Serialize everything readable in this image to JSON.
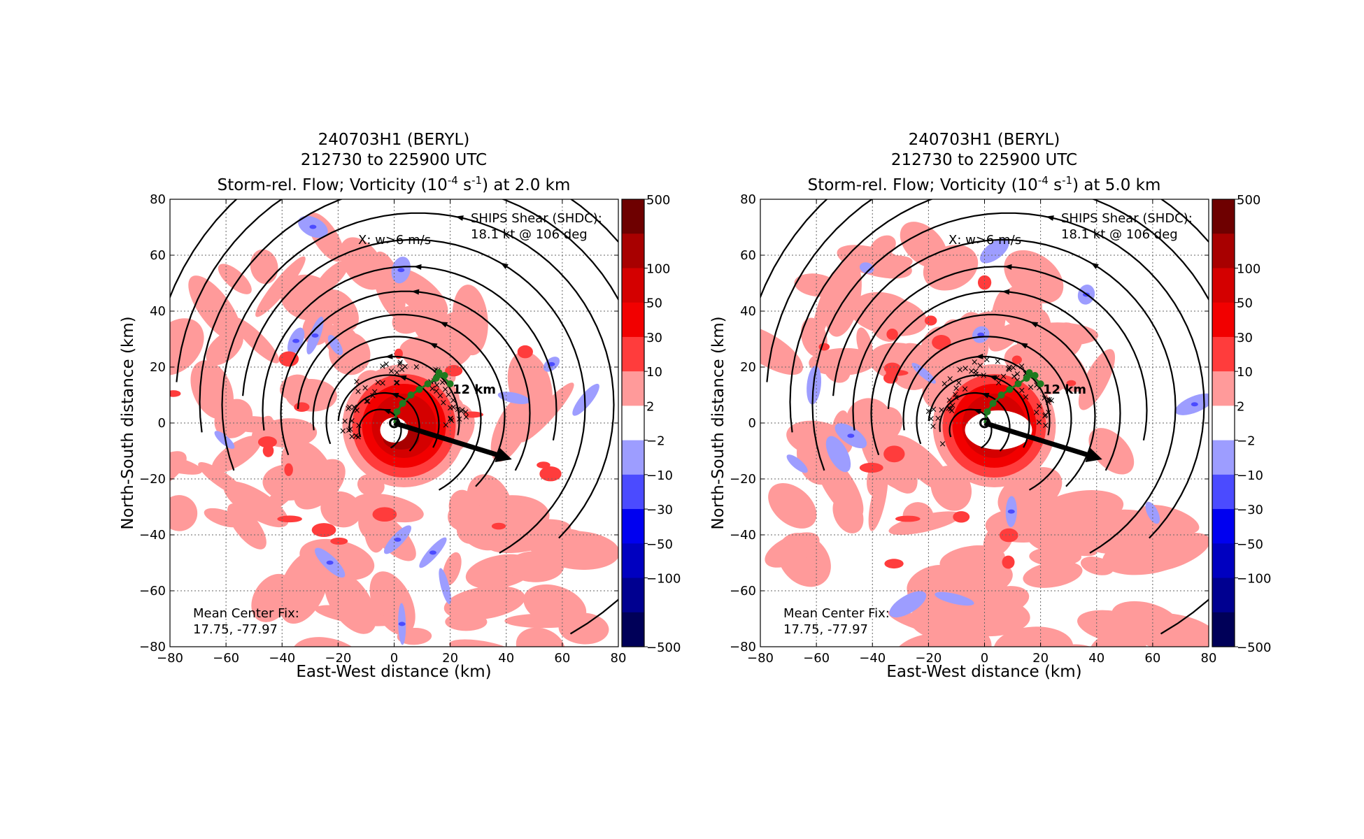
{
  "chart_data": [
    {
      "type": "heatmap",
      "title_lines": [
        "240703H1 (BERYL)",
        "212730 to 225900 UTC"
      ],
      "title_line3": {
        "pre": "Storm-rel. Flow; Vorticity (10",
        "exp1": "-4",
        "mid": " s",
        "exp2": "-1",
        "post": ") at 2.0 km"
      },
      "xlabel": "East-West distance (km)",
      "ylabel": "North-South distance (km)",
      "xlim": [
        -80,
        80
      ],
      "ylim": [
        -80,
        80
      ],
      "xticks": [
        "−80",
        "−60",
        "−40",
        "−20",
        "0",
        "20",
        "40",
        "60",
        "80"
      ],
      "yticks": [
        "−80",
        "−60",
        "−40",
        "−20",
        "0",
        "20",
        "40",
        "60",
        "80"
      ],
      "grid": true,
      "updraft_label": "X: w>6 m/s",
      "shear_lines": [
        "SHIPS Shear (SHDC):",
        "18.1 kt @ 106 deg"
      ],
      "center_lines": [
        "Mean Center Fix:",
        "17.75, -77.97"
      ],
      "tilt_label": "12 km",
      "shear_vector": {
        "x0": 0,
        "y0": 0,
        "x1": 42,
        "y1": -13
      },
      "tilt_track": [
        [
          0,
          0
        ],
        [
          1,
          4
        ],
        [
          3,
          7
        ],
        [
          6,
          10
        ],
        [
          9,
          12
        ],
        [
          12,
          14
        ],
        [
          15,
          16
        ],
        [
          18,
          17
        ],
        [
          16,
          18
        ],
        [
          20,
          14
        ]
      ],
      "colorbar_levels": [
        "500",
        "100",
        "50",
        "30",
        "10",
        "2",
        "−2",
        "−10",
        "−30",
        "−50",
        "−100",
        "−500"
      ],
      "colorbar_colors": [
        "#6e0000",
        "#a80000",
        "#d40000",
        "#f20000",
        "#ff3c3c",
        "#ff9a9a",
        "#ffffff",
        "#9d9dff",
        "#4b4bff",
        "#0000f0",
        "#0000c0",
        "#000090",
        "#000058"
      ]
    },
    {
      "type": "heatmap",
      "title_lines": [
        "240703H1 (BERYL)",
        "212730 to 225900 UTC"
      ],
      "title_line3": {
        "pre": "Storm-rel. Flow; Vorticity (10",
        "exp1": "-4",
        "mid": " s",
        "exp2": "-1",
        "post": ") at 5.0 km"
      },
      "xlabel": "East-West distance (km)",
      "ylabel": "North-South distance (km)",
      "xlim": [
        -80,
        80
      ],
      "ylim": [
        -80,
        80
      ],
      "xticks": [
        "−80",
        "−60",
        "−40",
        "−20",
        "0",
        "20",
        "40",
        "60",
        "80"
      ],
      "yticks": [
        "−80",
        "−60",
        "−40",
        "−20",
        "0",
        "20",
        "40",
        "60",
        "80"
      ],
      "grid": true,
      "updraft_label": "X: w>6 m/s",
      "shear_lines": [
        "SHIPS Shear (SHDC):",
        "18.1 kt @ 106 deg"
      ],
      "center_lines": [
        "Mean Center Fix:",
        "17.75, -77.97"
      ],
      "tilt_label": "12 km",
      "shear_vector": {
        "x0": 0,
        "y0": 0,
        "x1": 42,
        "y1": -13
      },
      "tilt_track": [
        [
          0,
          0
        ],
        [
          1,
          4
        ],
        [
          3,
          7
        ],
        [
          6,
          10
        ],
        [
          9,
          12
        ],
        [
          12,
          14
        ],
        [
          15,
          16
        ],
        [
          18,
          17
        ],
        [
          16,
          18
        ],
        [
          20,
          14
        ]
      ],
      "colorbar_levels": [
        "500",
        "100",
        "50",
        "30",
        "10",
        "2",
        "−2",
        "−10",
        "−30",
        "−50",
        "−100",
        "−500"
      ],
      "colorbar_colors": [
        "#6e0000",
        "#a80000",
        "#d40000",
        "#f20000",
        "#ff3c3c",
        "#ff9a9a",
        "#ffffff",
        "#9d9dff",
        "#4b4bff",
        "#0000f0",
        "#0000c0",
        "#000090",
        "#000058"
      ]
    }
  ]
}
